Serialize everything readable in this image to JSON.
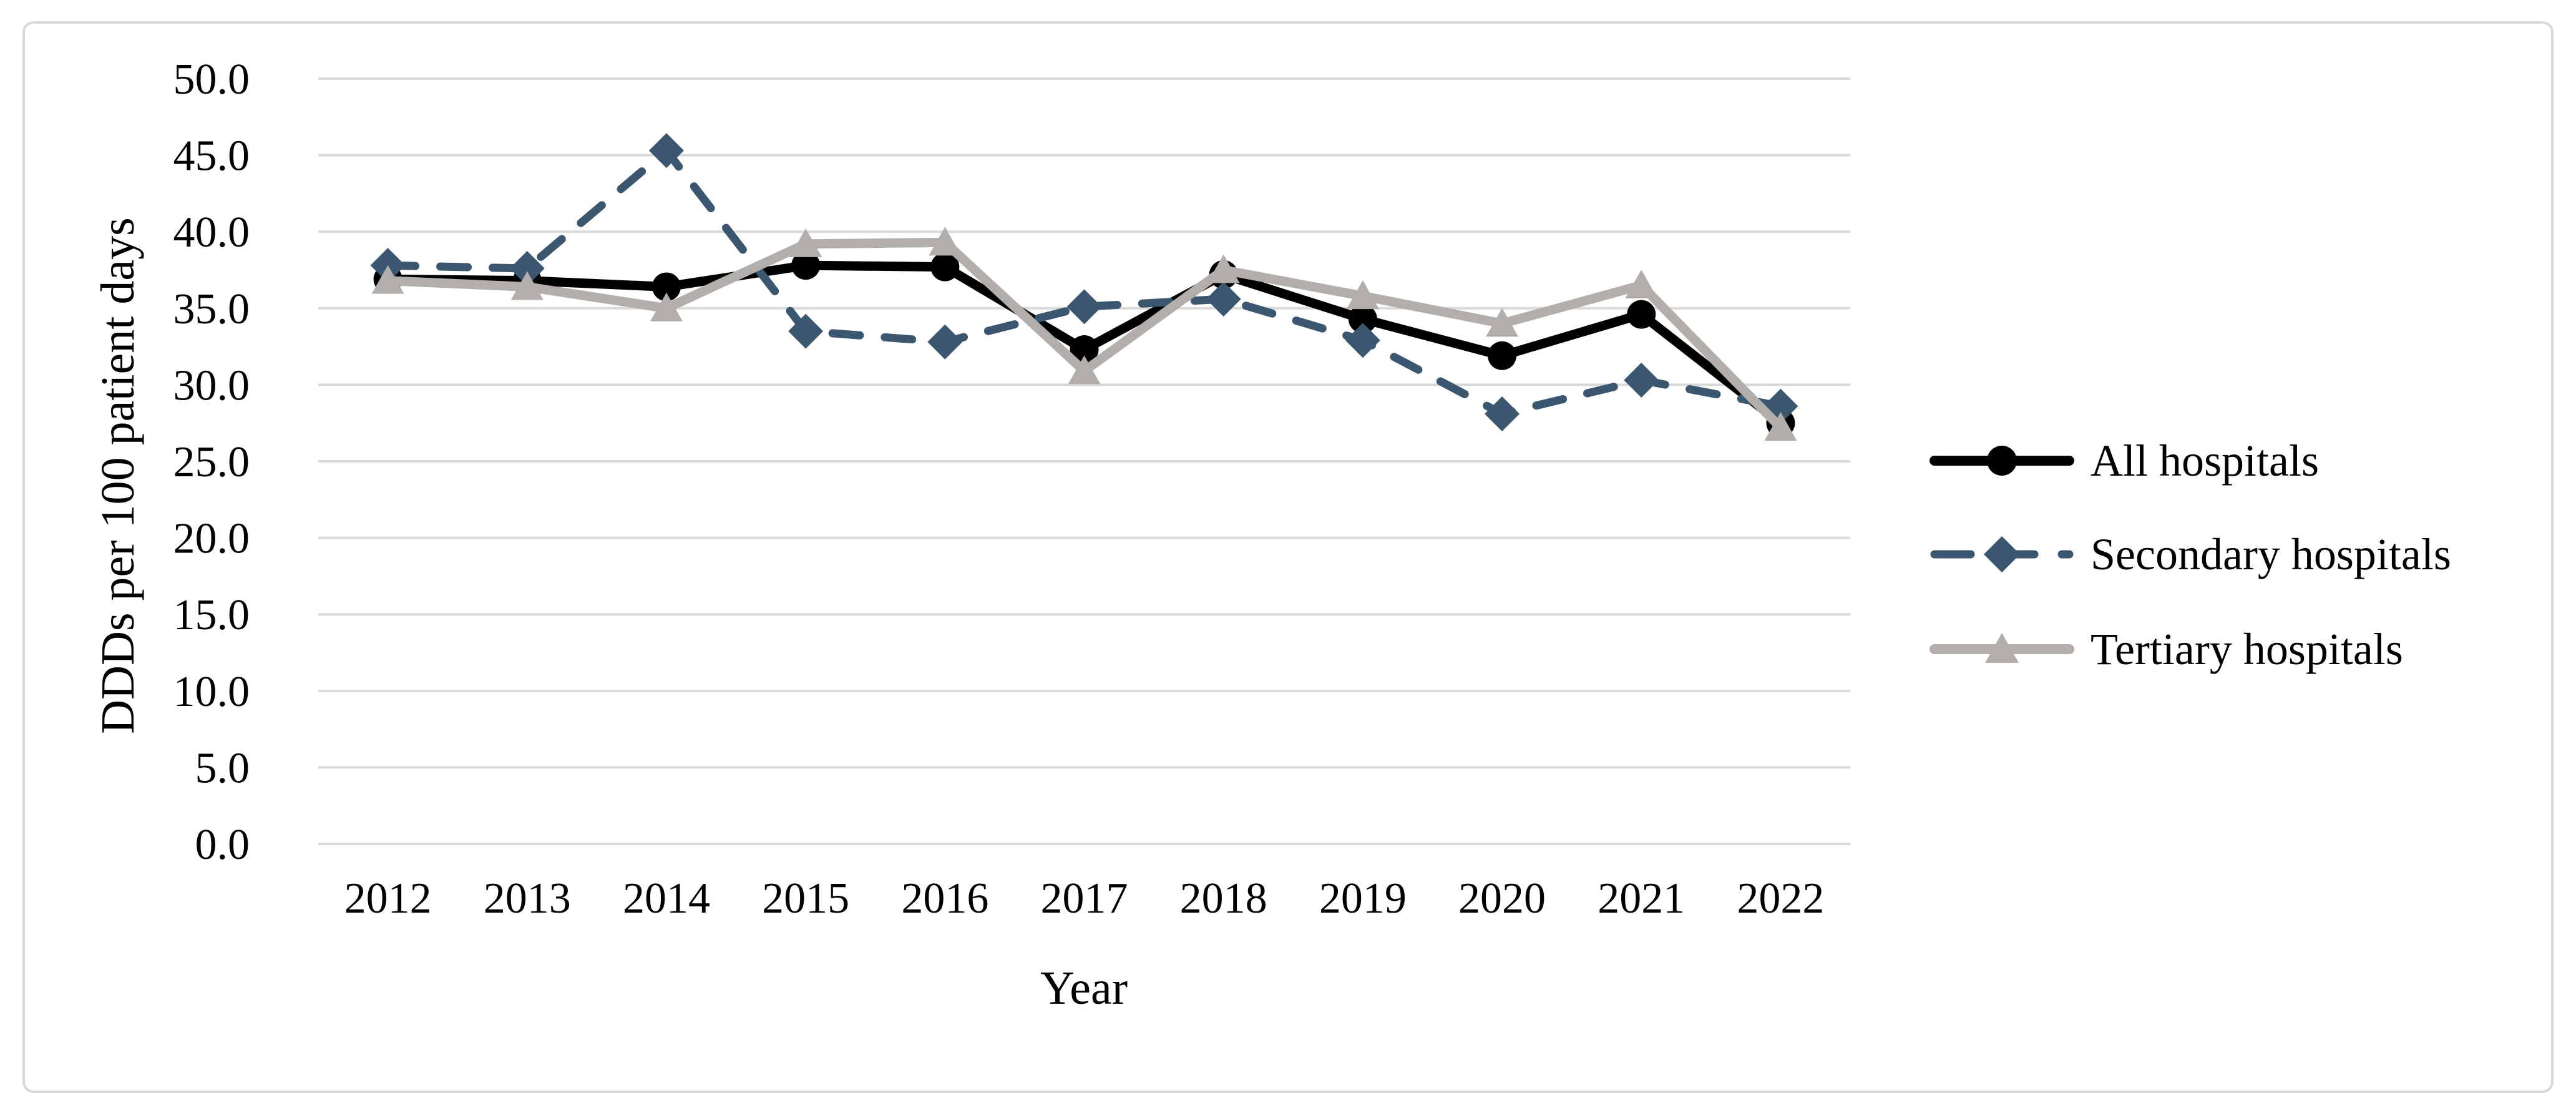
{
  "figure": {
    "background_color": "#ffffff",
    "border_color": "#D9D9D9"
  },
  "chart_data": {
    "type": "line",
    "title": "",
    "xlabel": "Year",
    "ylabel": "DDDs per 100 patient days",
    "ylim": [
      0,
      50
    ],
    "ytick_step": 5,
    "ytick_labels": [
      "0.0",
      "5.0",
      "10.0",
      "15.0",
      "20.0",
      "25.0",
      "30.0",
      "35.0",
      "40.0",
      "45.0",
      "50.0"
    ],
    "grid": "horizontal",
    "gridline_color": "#D9D9D9",
    "legend_position": "right",
    "categories": [
      "2012",
      "2013",
      "2014",
      "2015",
      "2016",
      "2017",
      "2018",
      "2019",
      "2020",
      "2021",
      "2022"
    ],
    "series": [
      {
        "name": "All hospitals",
        "color": "#000000",
        "line_style": "solid",
        "marker": "circle",
        "values": [
          36.9,
          36.8,
          36.4,
          37.8,
          37.7,
          32.3,
          37.2,
          34.3,
          31.9,
          34.6,
          27.5
        ]
      },
      {
        "name": "Secondary hospitals",
        "color": "#3B566F",
        "line_style": "dashed",
        "marker": "diamond",
        "values": [
          37.8,
          37.6,
          45.3,
          33.5,
          32.8,
          35.1,
          35.6,
          32.9,
          28.1,
          30.3,
          28.6
        ]
      },
      {
        "name": "Tertiary hospitals",
        "color": "#B1AEAB",
        "line_style": "solid",
        "marker": "triangle",
        "values": [
          36.8,
          36.4,
          35.0,
          39.2,
          39.3,
          30.9,
          37.5,
          35.8,
          34.0,
          36.5,
          27.2
        ]
      }
    ]
  }
}
